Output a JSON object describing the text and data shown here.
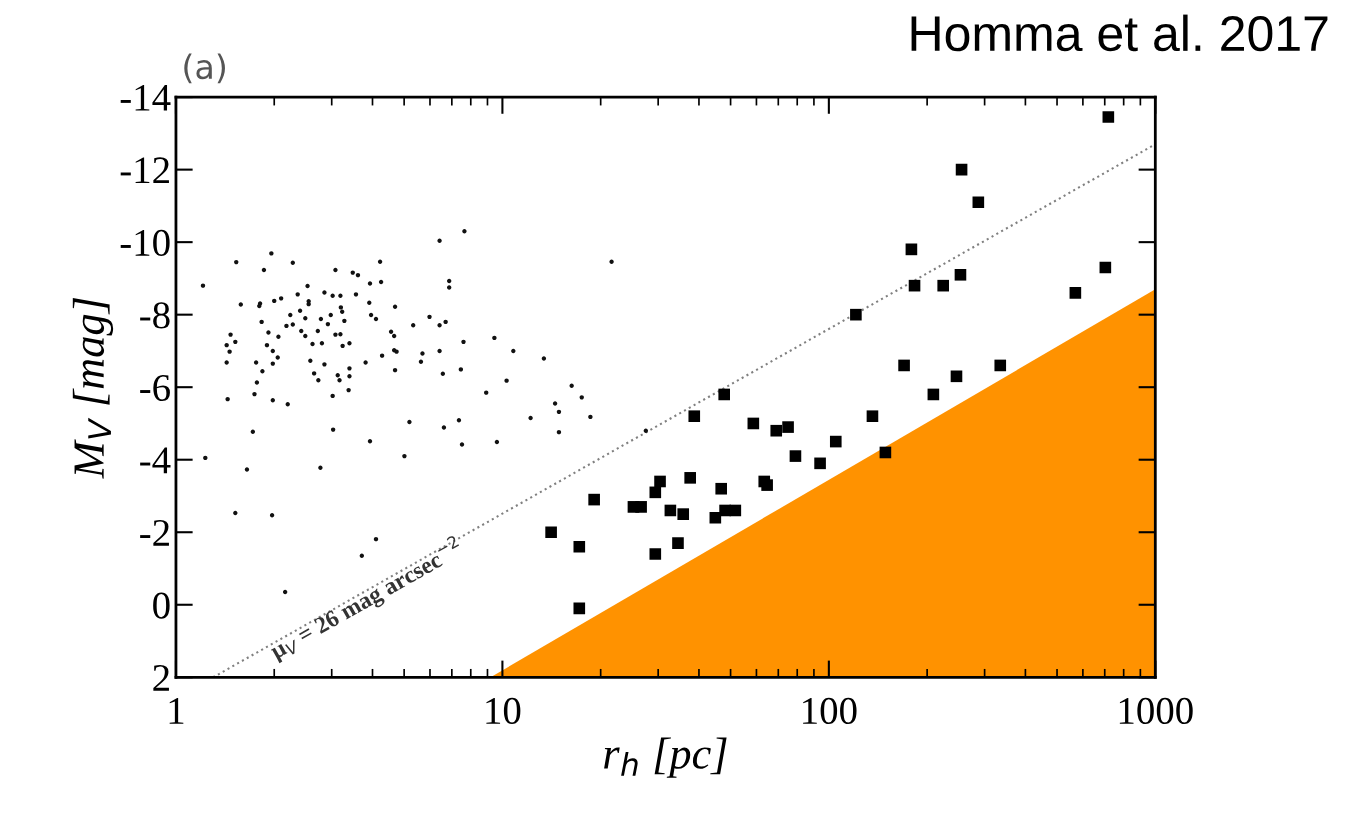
{
  "chart_data": {
    "type": "scatter",
    "xlabel": "r$_{h}$ [pc]",
    "ylabel": "M$_{V}$ [mag]",
    "log": "x",
    "xlim": [
      1,
      1000
    ],
    "xticks": [
      1,
      10,
      100,
      1000
    ],
    "ylim": [
      2,
      -14
    ],
    "yticks": [
      2,
      0,
      -2,
      -4,
      -6,
      -8,
      -10,
      -12,
      -14
    ],
    "annotations": [
      "(a)",
      "Homma et al. 2017",
      "μ$_{V}$ = 26 mag arcsec$^{−2}$"
    ],
    "series": [
      {
        "type": "area",
        "color": "#ff9200",
        "x": [
          9.2,
          1000
        ],
        "values": [
          2,
          -8.7
        ]
      },
      {
        "type": "line",
        "color": "#808080",
        "line_style": "dotted",
        "marker": "none",
        "x": [
          1.3,
          1000
        ],
        "values": [
          2,
          -12.7
        ]
      },
      {
        "color": "#111111",
        "marker": "circle",
        "x": [
          1.21,
          1.53,
          1.96,
          1.86,
          2.28,
          3.08,
          4.22,
          3.48,
          3.61,
          3.93,
          4.25,
          6.87,
          6.87,
          2.53,
          1.58,
          1.81,
          1.8,
          2.0,
          2.1,
          2.36,
          2.55,
          2.55,
          2.85,
          3.02,
          3.19,
          3.56,
          3.2,
          3.23,
          3.91,
          4.69,
          2.24,
          2.4,
          2.49,
          2.78,
          2.98,
          3.28,
          3.96,
          4.1,
          1.83,
          2.18,
          2.28,
          2.42,
          2.49,
          2.72,
          2.92,
          3.08,
          3.19,
          4.56,
          4.66,
          5.33,
          5.98,
          6.42,
          6.7,
          1.92,
          2.06,
          1.47,
          1.52,
          1.43,
          1.46,
          1.9,
          1.98,
          2.62,
          2.8,
          3.24,
          3.4,
          4.66,
          4.74,
          4.28,
          3.81,
          5.69,
          5.63,
          6.42,
          7.6,
          9.45,
          10.8,
          13.4,
          1.43,
          1.76,
          2.05,
          1.98,
          1.84,
          2.58,
          2.85,
          2.65,
          2.73,
          3.13,
          3.17,
          3.4,
          3.4,
          3.38,
          4.69,
          6.57,
          7.46,
          10.3,
          16.3,
          1.77,
          1.74,
          1.44,
          1.98,
          2.2,
          3.02,
          8.92,
          14.5,
          14.9,
          17.5,
          18.6,
          12.2,
          5.19,
          6.62,
          7.36,
          14.9,
          1.72,
          3.03,
          3.93,
          7.52,
          9.62,
          1.23,
          1.65,
          2.77,
          5.01,
          1.52,
          1.97,
          4.1,
          3.71,
          2.16,
          21.6,
          7.65,
          6.42,
          27.5
        ],
        "values": [
          -8.8,
          -9.45,
          -9.69,
          -9.23,
          -9.43,
          -9.23,
          -9.46,
          -9.16,
          -9.09,
          -8.86,
          -8.9,
          -8.93,
          -8.75,
          -8.79,
          -8.28,
          -8.31,
          -8.24,
          -8.38,
          -8.45,
          -8.56,
          -8.37,
          -8.29,
          -8.61,
          -8.52,
          -8.52,
          -8.56,
          -8.2,
          -8.08,
          -8.33,
          -8.22,
          -7.99,
          -8.11,
          -7.9,
          -7.88,
          -7.99,
          -7.83,
          -7.99,
          -7.88,
          -7.8,
          -7.69,
          -7.73,
          -7.55,
          -7.41,
          -7.55,
          -7.74,
          -7.45,
          -7.46,
          -7.53,
          -7.41,
          -7.71,
          -7.94,
          -7.71,
          -7.8,
          -7.51,
          -7.39,
          -7.45,
          -7.25,
          -7.16,
          -6.98,
          -7.16,
          -7.0,
          -7.19,
          -7.21,
          -7.14,
          -7.21,
          -7.02,
          -6.98,
          -6.87,
          -6.68,
          -6.93,
          -6.7,
          -7.0,
          -7.25,
          -7.36,
          -7.0,
          -6.79,
          -6.68,
          -6.68,
          -6.82,
          -6.65,
          -6.44,
          -6.73,
          -6.63,
          -6.38,
          -6.19,
          -6.33,
          -6.19,
          -6.52,
          -6.3,
          -5.92,
          -6.47,
          -6.37,
          -6.49,
          -6.18,
          -6.04,
          -6.13,
          -5.81,
          -5.67,
          -5.64,
          -5.53,
          -5.76,
          -5.85,
          -5.55,
          -5.32,
          -5.72,
          -5.18,
          -5.15,
          -5.04,
          -4.89,
          -5.09,
          -4.76,
          -4.77,
          -4.83,
          -4.51,
          -4.42,
          -4.49,
          -4.05,
          -3.73,
          -3.78,
          -4.1,
          -2.53,
          -2.47,
          -1.81,
          -1.35,
          -0.35,
          -9.46,
          -10.3,
          -10.04,
          -4.8
        ]
      },
      {
        "color": "#000000",
        "marker": "square",
        "x": [
          718,
          255,
          287,
          179,
          183,
          224,
          253,
          703,
          569,
          121,
          170,
          335,
          246,
          209,
          47.8,
          38.7,
          136,
          58.7,
          69,
          75,
          105,
          79,
          94,
          149,
          30.4,
          29.4,
          37.6,
          46.8,
          63.4,
          64.7,
          19.1,
          25.2,
          26.6,
          32.7,
          35.8,
          44.9,
          48.1,
          51.7,
          14.1,
          17.2,
          29.4,
          34.5,
          17.2
        ],
        "values": [
          -13.45,
          -12.0,
          -11.1,
          -9.8,
          -8.8,
          -8.8,
          -9.1,
          -9.3,
          -8.6,
          -8.0,
          -6.6,
          -6.6,
          -6.3,
          -5.8,
          -5.8,
          -5.2,
          -5.2,
          -5.0,
          -4.8,
          -4.9,
          -4.5,
          -4.1,
          -3.9,
          -4.2,
          -3.4,
          -3.1,
          -3.5,
          -3.2,
          -3.4,
          -3.3,
          -2.9,
          -2.7,
          -2.7,
          -2.6,
          -2.5,
          -2.4,
          -2.6,
          -2.6,
          -2.0,
          -1.6,
          -1.4,
          -1.7,
          0.1
        ]
      }
    ]
  }
}
